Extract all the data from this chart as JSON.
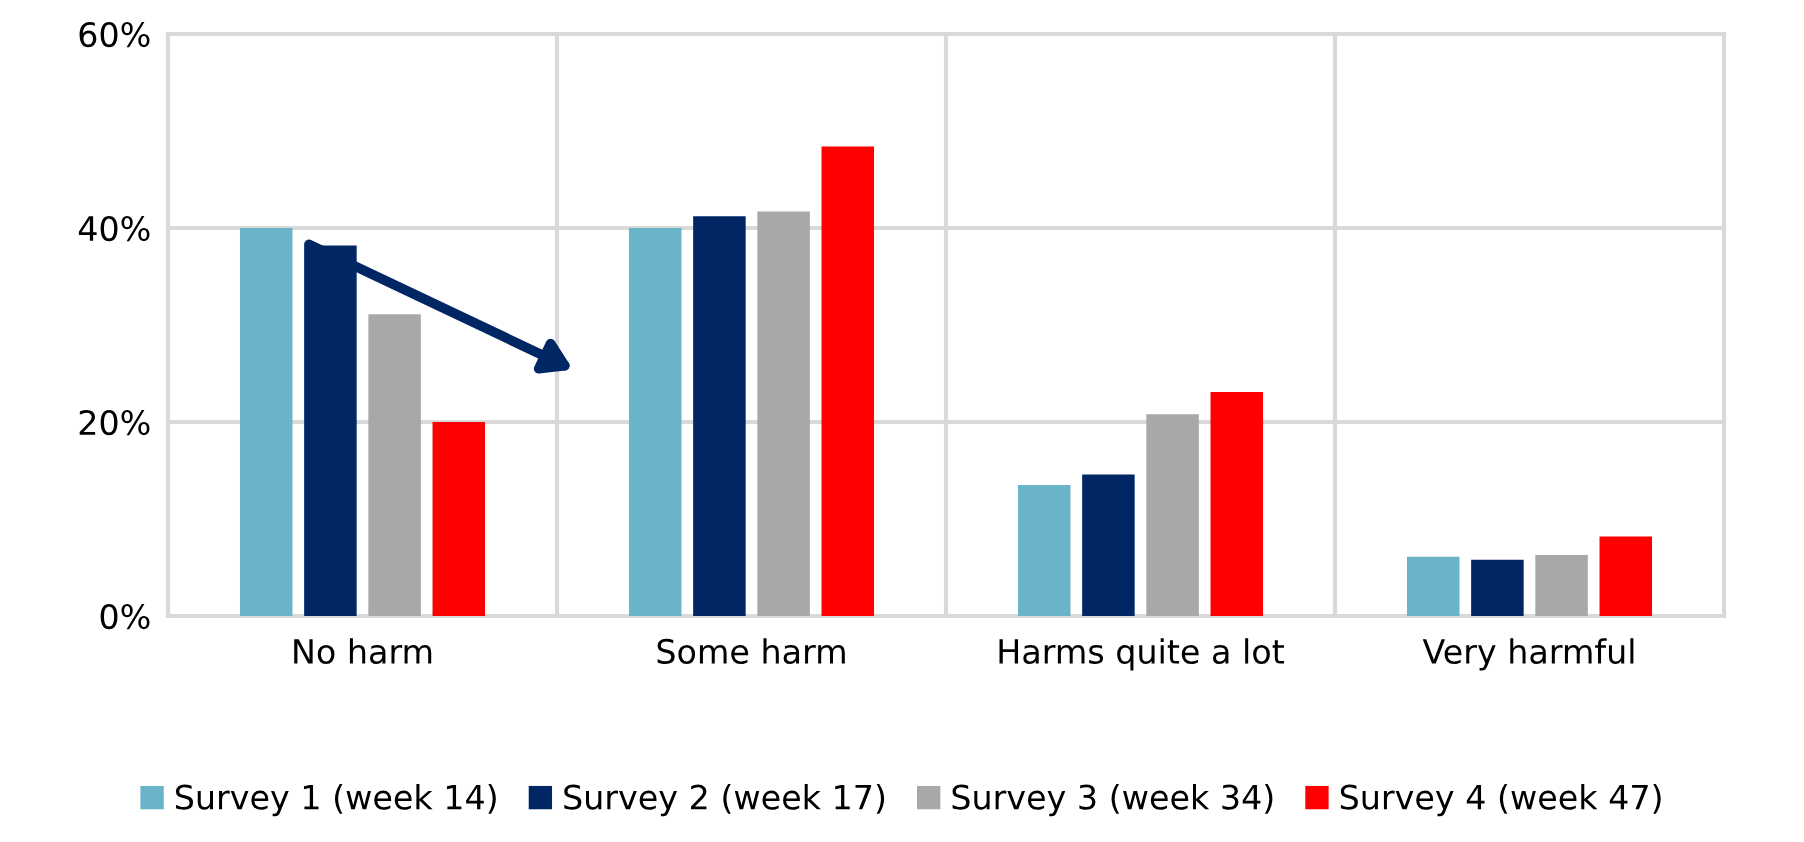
{
  "chart_data": {
    "type": "bar",
    "categories": [
      "No harm",
      "Some harm",
      "Harms quite a lot",
      "Very harmful"
    ],
    "series": [
      {
        "name": "Survey 1 (week 14)",
        "color": "#6ab4c9",
        "values": [
          40.0,
          40.0,
          13.5,
          6.1
        ]
      },
      {
        "name": "Survey 2 (week 17)",
        "color": "#002664",
        "values": [
          38.2,
          41.2,
          14.6,
          5.8
        ]
      },
      {
        "name": "Survey 3 (week 34)",
        "color": "#a8a8a8",
        "values": [
          31.1,
          41.7,
          20.8,
          6.3
        ]
      },
      {
        "name": "Survey 4 (week 47)",
        "color": "#ff0000",
        "values": [
          20.0,
          48.4,
          23.1,
          8.2
        ]
      }
    ],
    "ylim": [
      0,
      60
    ],
    "yticks": [
      {
        "value": 0,
        "label": "0%"
      },
      {
        "value": 20,
        "label": "20%"
      },
      {
        "value": 40,
        "label": "40%"
      },
      {
        "value": 60,
        "label": "60%"
      }
    ],
    "grid": true,
    "legend": "bottom"
  }
}
